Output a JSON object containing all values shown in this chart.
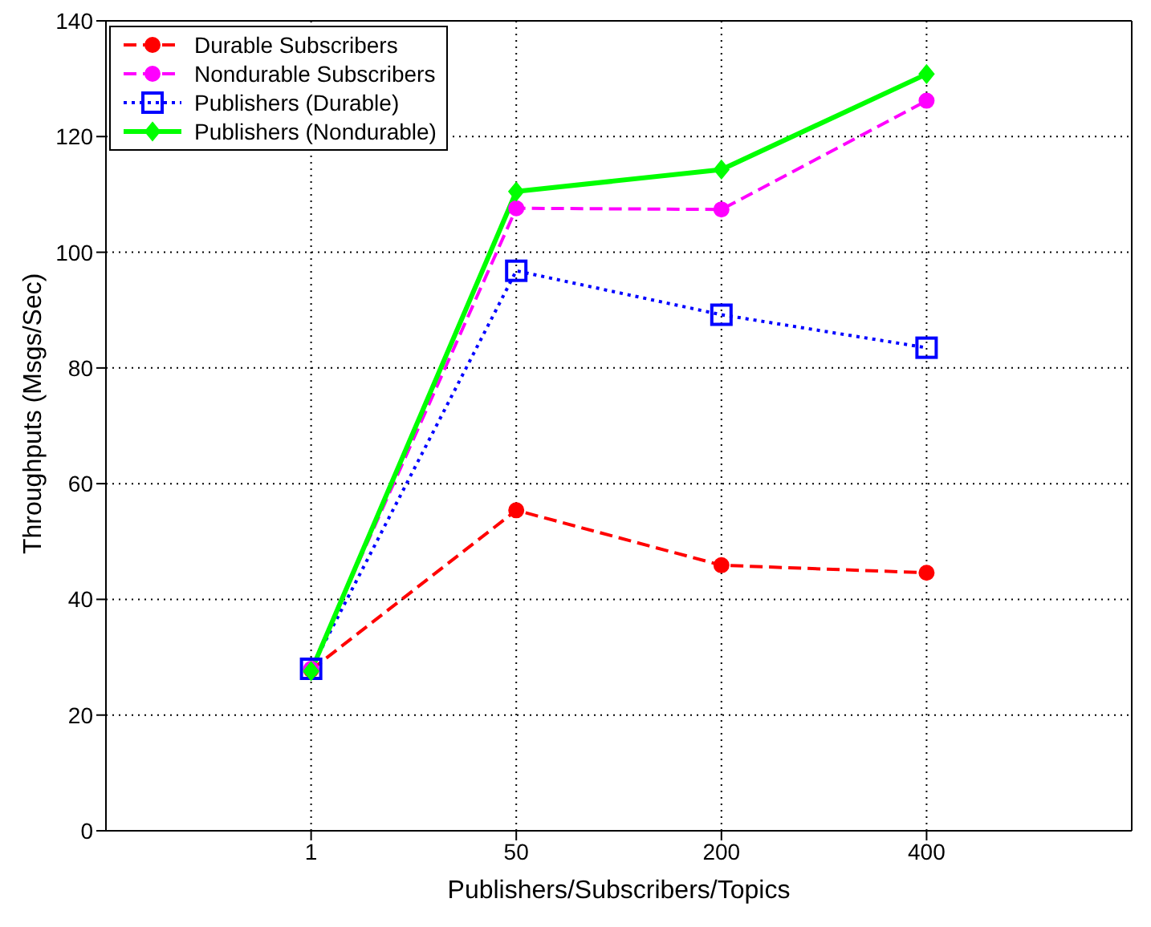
{
  "chart_data": {
    "type": "line",
    "xlabel": "Publishers/Subscribers/Topics",
    "ylabel": "Throughputs (Msgs/Sec)",
    "categories": [
      "1",
      "50",
      "200",
      "400"
    ],
    "series": [
      {
        "name": "Durable Subscribers",
        "color": "#ff0000",
        "values": [
          27.8,
          55.4,
          45.9,
          44.6
        ],
        "marker": "circle",
        "line_style": "dashed"
      },
      {
        "name": "Nondurable Subscribers",
        "color": "#ff00ff",
        "values": [
          28.0,
          107.6,
          107.4,
          126.2
        ],
        "marker": "circle",
        "line_style": "dashed"
      },
      {
        "name": "Publishers (Durable)",
        "color": "#0000ff",
        "values": [
          28.0,
          96.8,
          89.2,
          83.5
        ],
        "marker": "square",
        "line_style": "dotted"
      },
      {
        "name": "Publishers (Nondurable)",
        "color": "#00ff00",
        "values": [
          27.6,
          110.5,
          114.3,
          130.8
        ],
        "marker": "diamond",
        "line_style": "solid"
      }
    ],
    "ylim": [
      0,
      140
    ],
    "yticks": [
      0,
      20,
      40,
      60,
      80,
      100,
      120,
      140
    ],
    "grid": true,
    "legend": "top left"
  }
}
